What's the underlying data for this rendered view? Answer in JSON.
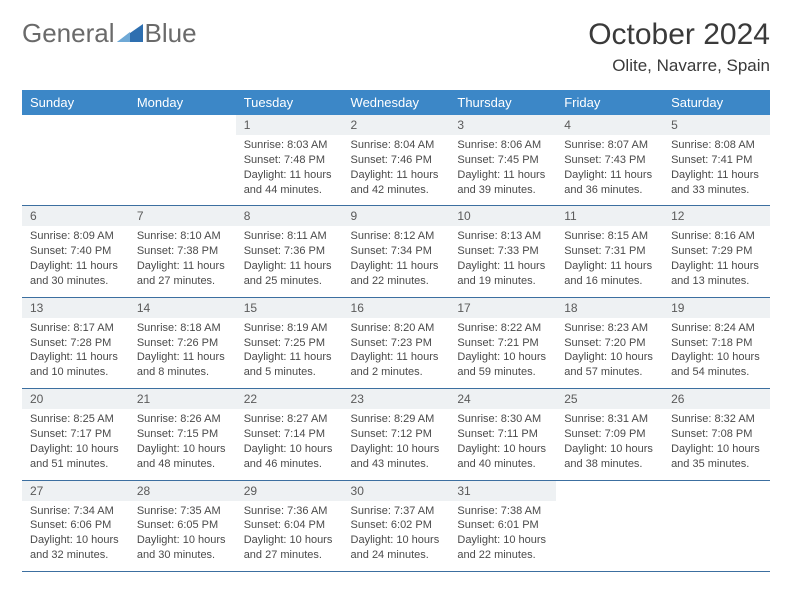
{
  "brand": {
    "part1": "General",
    "part2": "Blue",
    "text_color": "#6a6a6a",
    "accent": "#2e6fb0"
  },
  "title": "October 2024",
  "location": "Olite, Navarre, Spain",
  "colors": {
    "header_bg": "#3c87c7",
    "header_text": "#ffffff",
    "daynum_bg": "#eef1f3",
    "daynum_text": "#5a5a5a",
    "body_text": "#4a4a4a",
    "row_border": "#3c6fa0",
    "page_bg": "#ffffff"
  },
  "typography": {
    "title_fontsize": 30,
    "location_fontsize": 17,
    "weekday_fontsize": 13,
    "daynum_fontsize": 12,
    "body_fontsize": 11
  },
  "weekdays": [
    "Sunday",
    "Monday",
    "Tuesday",
    "Wednesday",
    "Thursday",
    "Friday",
    "Saturday"
  ],
  "weeks": [
    [
      {
        "n": "",
        "t": ""
      },
      {
        "n": "",
        "t": ""
      },
      {
        "n": "1",
        "t": "Sunrise: 8:03 AM\nSunset: 7:48 PM\nDaylight: 11 hours and 44 minutes."
      },
      {
        "n": "2",
        "t": "Sunrise: 8:04 AM\nSunset: 7:46 PM\nDaylight: 11 hours and 42 minutes."
      },
      {
        "n": "3",
        "t": "Sunrise: 8:06 AM\nSunset: 7:45 PM\nDaylight: 11 hours and 39 minutes."
      },
      {
        "n": "4",
        "t": "Sunrise: 8:07 AM\nSunset: 7:43 PM\nDaylight: 11 hours and 36 minutes."
      },
      {
        "n": "5",
        "t": "Sunrise: 8:08 AM\nSunset: 7:41 PM\nDaylight: 11 hours and 33 minutes."
      }
    ],
    [
      {
        "n": "6",
        "t": "Sunrise: 8:09 AM\nSunset: 7:40 PM\nDaylight: 11 hours and 30 minutes."
      },
      {
        "n": "7",
        "t": "Sunrise: 8:10 AM\nSunset: 7:38 PM\nDaylight: 11 hours and 27 minutes."
      },
      {
        "n": "8",
        "t": "Sunrise: 8:11 AM\nSunset: 7:36 PM\nDaylight: 11 hours and 25 minutes."
      },
      {
        "n": "9",
        "t": "Sunrise: 8:12 AM\nSunset: 7:34 PM\nDaylight: 11 hours and 22 minutes."
      },
      {
        "n": "10",
        "t": "Sunrise: 8:13 AM\nSunset: 7:33 PM\nDaylight: 11 hours and 19 minutes."
      },
      {
        "n": "11",
        "t": "Sunrise: 8:15 AM\nSunset: 7:31 PM\nDaylight: 11 hours and 16 minutes."
      },
      {
        "n": "12",
        "t": "Sunrise: 8:16 AM\nSunset: 7:29 PM\nDaylight: 11 hours and 13 minutes."
      }
    ],
    [
      {
        "n": "13",
        "t": "Sunrise: 8:17 AM\nSunset: 7:28 PM\nDaylight: 11 hours and 10 minutes."
      },
      {
        "n": "14",
        "t": "Sunrise: 8:18 AM\nSunset: 7:26 PM\nDaylight: 11 hours and 8 minutes."
      },
      {
        "n": "15",
        "t": "Sunrise: 8:19 AM\nSunset: 7:25 PM\nDaylight: 11 hours and 5 minutes."
      },
      {
        "n": "16",
        "t": "Sunrise: 8:20 AM\nSunset: 7:23 PM\nDaylight: 11 hours and 2 minutes."
      },
      {
        "n": "17",
        "t": "Sunrise: 8:22 AM\nSunset: 7:21 PM\nDaylight: 10 hours and 59 minutes."
      },
      {
        "n": "18",
        "t": "Sunrise: 8:23 AM\nSunset: 7:20 PM\nDaylight: 10 hours and 57 minutes."
      },
      {
        "n": "19",
        "t": "Sunrise: 8:24 AM\nSunset: 7:18 PM\nDaylight: 10 hours and 54 minutes."
      }
    ],
    [
      {
        "n": "20",
        "t": "Sunrise: 8:25 AM\nSunset: 7:17 PM\nDaylight: 10 hours and 51 minutes."
      },
      {
        "n": "21",
        "t": "Sunrise: 8:26 AM\nSunset: 7:15 PM\nDaylight: 10 hours and 48 minutes."
      },
      {
        "n": "22",
        "t": "Sunrise: 8:27 AM\nSunset: 7:14 PM\nDaylight: 10 hours and 46 minutes."
      },
      {
        "n": "23",
        "t": "Sunrise: 8:29 AM\nSunset: 7:12 PM\nDaylight: 10 hours and 43 minutes."
      },
      {
        "n": "24",
        "t": "Sunrise: 8:30 AM\nSunset: 7:11 PM\nDaylight: 10 hours and 40 minutes."
      },
      {
        "n": "25",
        "t": "Sunrise: 8:31 AM\nSunset: 7:09 PM\nDaylight: 10 hours and 38 minutes."
      },
      {
        "n": "26",
        "t": "Sunrise: 8:32 AM\nSunset: 7:08 PM\nDaylight: 10 hours and 35 minutes."
      }
    ],
    [
      {
        "n": "27",
        "t": "Sunrise: 7:34 AM\nSunset: 6:06 PM\nDaylight: 10 hours and 32 minutes."
      },
      {
        "n": "28",
        "t": "Sunrise: 7:35 AM\nSunset: 6:05 PM\nDaylight: 10 hours and 30 minutes."
      },
      {
        "n": "29",
        "t": "Sunrise: 7:36 AM\nSunset: 6:04 PM\nDaylight: 10 hours and 27 minutes."
      },
      {
        "n": "30",
        "t": "Sunrise: 7:37 AM\nSunset: 6:02 PM\nDaylight: 10 hours and 24 minutes."
      },
      {
        "n": "31",
        "t": "Sunrise: 7:38 AM\nSunset: 6:01 PM\nDaylight: 10 hours and 22 minutes."
      },
      {
        "n": "",
        "t": ""
      },
      {
        "n": "",
        "t": ""
      }
    ]
  ]
}
